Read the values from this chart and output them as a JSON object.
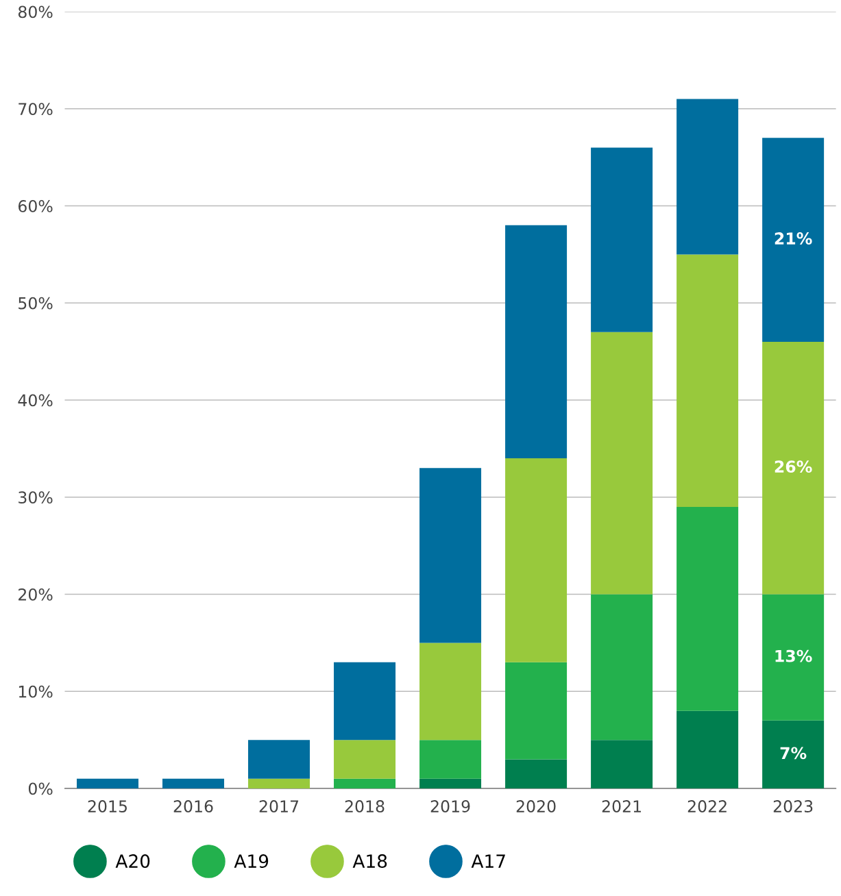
{
  "chart_data": {
    "type": "bar",
    "stacked": true,
    "categories": [
      "2015",
      "2016",
      "2017",
      "2018",
      "2019",
      "2020",
      "2021",
      "2022",
      "2023"
    ],
    "series": [
      {
        "name": "A20",
        "color": "#007f4f",
        "values": [
          0,
          0,
          0,
          0,
          1,
          3,
          5,
          8,
          7
        ],
        "value_labels": [
          null,
          null,
          null,
          null,
          null,
          null,
          null,
          null,
          "7%"
        ]
      },
      {
        "name": "A19",
        "color": "#23b14d",
        "values": [
          0,
          0,
          0,
          1,
          4,
          10,
          15,
          21,
          13
        ],
        "value_labels": [
          null,
          null,
          null,
          null,
          null,
          null,
          null,
          null,
          "13%"
        ]
      },
      {
        "name": "A18",
        "color": "#98c93c",
        "values": [
          0,
          0,
          1,
          4,
          10,
          21,
          27,
          26,
          26
        ],
        "value_labels": [
          null,
          null,
          null,
          null,
          null,
          null,
          null,
          null,
          "26%"
        ]
      },
      {
        "name": "A17",
        "color": "#006e9e",
        "values": [
          1,
          1,
          4,
          8,
          18,
          24,
          19,
          16,
          21
        ],
        "value_labels": [
          null,
          null,
          null,
          null,
          null,
          null,
          null,
          null,
          "21%"
        ]
      }
    ],
    "ylim": [
      0,
      80
    ],
    "yticks": [
      {
        "value": 0,
        "label": "0%"
      },
      {
        "value": 10,
        "label": "10%"
      },
      {
        "value": 20,
        "label": "20%"
      },
      {
        "value": 30,
        "label": "30%"
      },
      {
        "value": 40,
        "label": "40%"
      },
      {
        "value": 50,
        "label": "50%"
      },
      {
        "value": 60,
        "label": "60%"
      },
      {
        "value": 70,
        "label": "70%"
      },
      {
        "value": 80,
        "label": "80%"
      }
    ],
    "grid": "y",
    "legend": "bottom left",
    "marker": "circle"
  }
}
